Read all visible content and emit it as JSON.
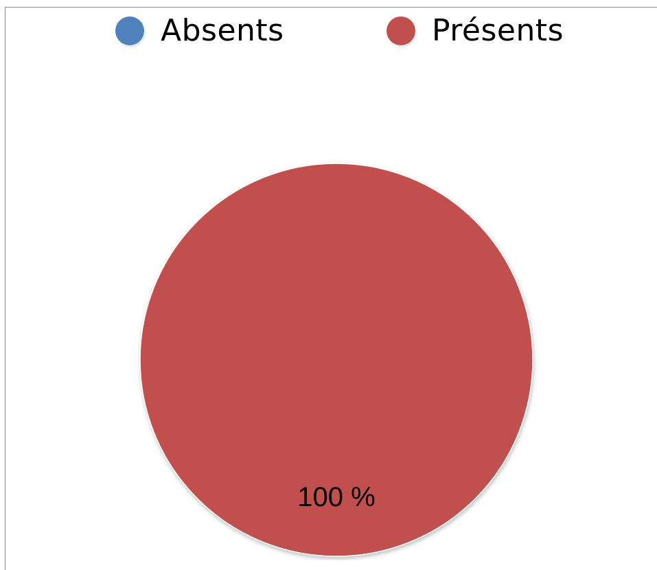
{
  "chart_data": {
    "type": "pie",
    "categories": [
      "Absents",
      "Présents"
    ],
    "values": [
      0,
      100
    ],
    "data_labels": [
      "100 %"
    ],
    "colors": [
      "#4f81bd",
      "#c0504d"
    ],
    "legend_position": "top"
  }
}
